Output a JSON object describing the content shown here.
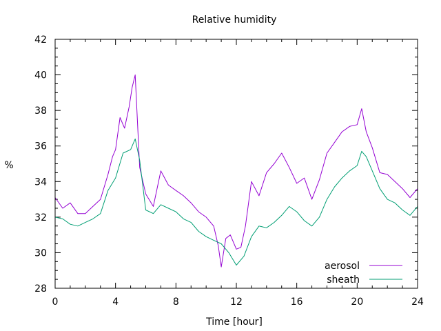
{
  "chart_data": {
    "type": "line",
    "title": "Relative humidity",
    "xlabel": "Time [hour]",
    "ylabel": "%",
    "xlim": [
      0,
      24
    ],
    "ylim": [
      28,
      42
    ],
    "xticks": [
      0,
      4,
      8,
      12,
      16,
      20,
      24
    ],
    "yticks": [
      28,
      30,
      32,
      34,
      36,
      38,
      40,
      42
    ],
    "grid": false,
    "legend_position": "bottom-right",
    "series": [
      {
        "name": "aerosol",
        "color": "#9400d3",
        "x": [
          0,
          0.5,
          1,
          1.5,
          2,
          2.5,
          3,
          3.5,
          3.8,
          4,
          4.3,
          4.6,
          4.9,
          5.1,
          5.3,
          5.6,
          6,
          6.5,
          7,
          7.5,
          8,
          8.5,
          9,
          9.5,
          10,
          10.5,
          10.8,
          11,
          11.3,
          11.6,
          12,
          12.3,
          12.6,
          13,
          13.5,
          14,
          14.5,
          15,
          15.5,
          16,
          16.5,
          17,
          17.5,
          18,
          18.5,
          19,
          19.5,
          20,
          20.3,
          20.6,
          21,
          21.5,
          22,
          22.5,
          23,
          23.5,
          24
        ],
        "y": [
          33.1,
          32.5,
          32.8,
          32.2,
          32.2,
          32.6,
          33.0,
          34.4,
          35.4,
          35.8,
          37.6,
          37.0,
          38.2,
          39.3,
          40.0,
          34.8,
          33.3,
          32.6,
          34.6,
          33.8,
          33.5,
          33.2,
          32.8,
          32.3,
          32.0,
          31.5,
          30.4,
          29.2,
          30.8,
          31.0,
          30.2,
          30.3,
          31.5,
          34.0,
          33.2,
          34.5,
          35.0,
          35.6,
          34.8,
          33.9,
          34.2,
          33.0,
          34.1,
          35.6,
          36.2,
          36.8,
          37.1,
          37.2,
          38.1,
          36.8,
          35.9,
          34.5,
          34.4,
          34.0,
          33.6,
          33.1,
          33.6
        ]
      },
      {
        "name": "sheath",
        "color": "#009e73",
        "x": [
          0,
          0.5,
          1,
          1.5,
          2,
          2.5,
          3,
          3.5,
          4,
          4.5,
          5,
          5.3,
          5.6,
          6,
          6.5,
          7,
          7.5,
          8,
          8.5,
          9,
          9.5,
          10,
          10.5,
          11,
          11.5,
          12,
          12.5,
          13,
          13.5,
          14,
          14.5,
          15,
          15.5,
          16,
          16.5,
          17,
          17.5,
          18,
          18.5,
          19,
          19.5,
          20,
          20.3,
          20.6,
          21,
          21.5,
          22,
          22.5,
          23,
          23.5,
          24
        ],
        "y": [
          32.0,
          31.9,
          31.6,
          31.5,
          31.7,
          31.9,
          32.2,
          33.5,
          34.2,
          35.6,
          35.8,
          36.4,
          35.2,
          32.4,
          32.2,
          32.7,
          32.5,
          32.3,
          31.9,
          31.7,
          31.2,
          30.9,
          30.7,
          30.5,
          30.0,
          29.3,
          29.8,
          30.9,
          31.5,
          31.4,
          31.7,
          32.1,
          32.6,
          32.3,
          31.8,
          31.5,
          32.0,
          33.0,
          33.7,
          34.2,
          34.6,
          34.9,
          35.7,
          35.4,
          34.6,
          33.6,
          33.0,
          32.8,
          32.4,
          32.1,
          32.6
        ]
      }
    ]
  }
}
